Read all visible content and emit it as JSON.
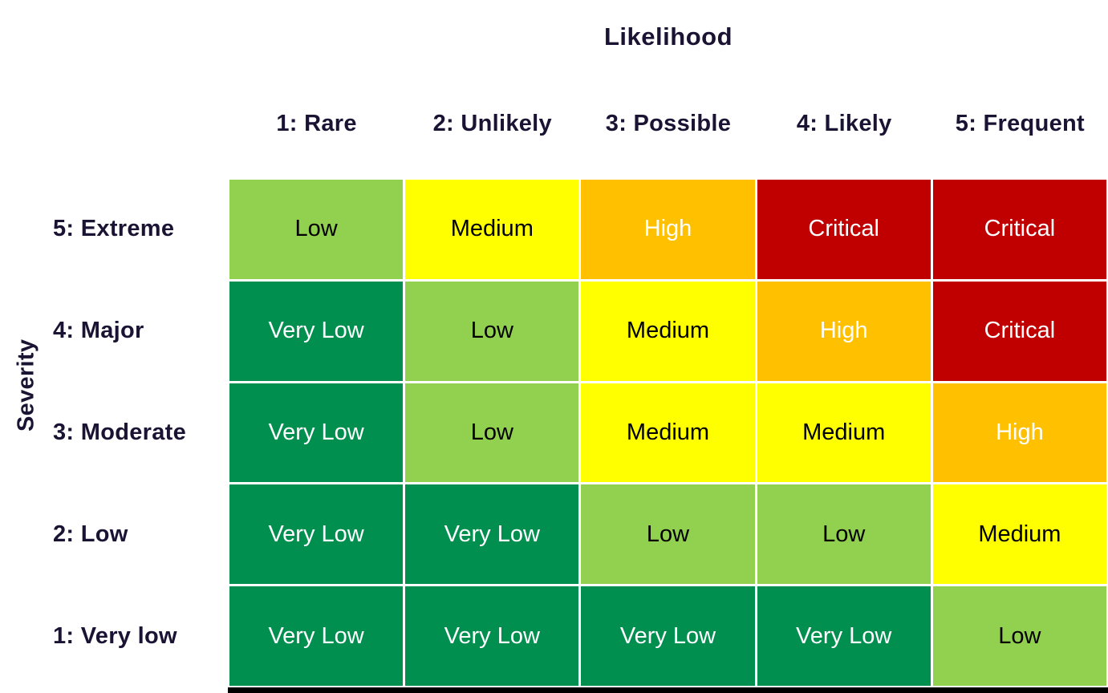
{
  "title": "Likelihood",
  "y_axis_title": "Severity",
  "columns": [
    "1: Rare",
    "2: Unlikely",
    "3: Possible",
    "4: Likely",
    "5: Frequent"
  ],
  "rows": [
    "5: Extreme",
    "4: Major",
    "3: Moderate",
    "2: Low",
    "1: Very low"
  ],
  "cells": [
    [
      "low",
      "medium",
      "high",
      "critical",
      "critical"
    ],
    [
      "very_low",
      "low",
      "medium",
      "high",
      "critical"
    ],
    [
      "very_low",
      "low",
      "medium",
      "medium",
      "high"
    ],
    [
      "very_low",
      "very_low",
      "low",
      "low",
      "medium"
    ],
    [
      "very_low",
      "very_low",
      "very_low",
      "very_low",
      "low"
    ]
  ],
  "level_labels": {
    "very_low": "Very Low",
    "low": "Low",
    "medium": "Medium",
    "high": "High",
    "critical": "Critical"
  },
  "level_styles": {
    "very_low": {
      "bg": "#008F4F",
      "fg": "#FFFFFF"
    },
    "low": {
      "bg": "#92D050",
      "fg": "#000000"
    },
    "medium": {
      "bg": "#FFFF00",
      "fg": "#000000"
    },
    "high": {
      "bg": "#FFC000",
      "fg": "#FFFFFF"
    },
    "critical": {
      "bg": "#C00000",
      "fg": "#FFFFFF"
    }
  },
  "label_text_color": "#1A1333",
  "gridline_color": "#FFFFFF",
  "bottom_border_color": "#000000",
  "chart_data": {
    "type": "heatmap",
    "title": "Likelihood",
    "xlabel": "Likelihood",
    "ylabel": "Severity",
    "x_categories": [
      "1: Rare",
      "2: Unlikely",
      "3: Possible",
      "4: Likely",
      "5: Frequent"
    ],
    "y_categories": [
      "5: Extreme",
      "4: Major",
      "3: Moderate",
      "2: Low",
      "1: Very low"
    ],
    "values": [
      [
        "Low",
        "Medium",
        "High",
        "Critical",
        "Critical"
      ],
      [
        "Very Low",
        "Low",
        "Medium",
        "High",
        "Critical"
      ],
      [
        "Very Low",
        "Low",
        "Medium",
        "Medium",
        "High"
      ],
      [
        "Very Low",
        "Very Low",
        "Low",
        "Low",
        "Medium"
      ],
      [
        "Very Low",
        "Very Low",
        "Very Low",
        "Very Low",
        "Low"
      ]
    ],
    "value_colors": {
      "Very Low": "#008F4F",
      "Low": "#92D050",
      "Medium": "#FFFF00",
      "High": "#FFC000",
      "Critical": "#C00000"
    },
    "legend": "none",
    "grid": "3px white gaps between cells"
  }
}
